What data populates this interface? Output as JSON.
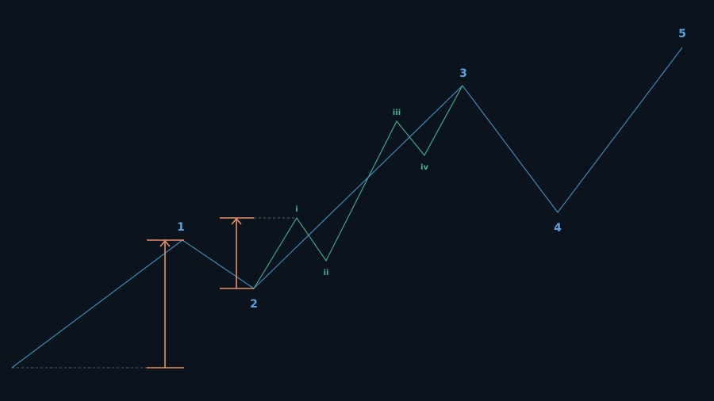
{
  "colors": {
    "background": "#0b131c",
    "main_wave": "#3f88b8",
    "sub_wave": "#3ea88f",
    "measure": "#e8906a",
    "guide": "#5a6570",
    "major_label": "#5aa3e0",
    "minor_label": "#45b39b"
  },
  "diagram": {
    "major_labels": [
      "1",
      "2",
      "3",
      "4",
      "5"
    ],
    "minor_labels": [
      "i",
      "ii",
      "iii",
      "iv"
    ]
  }
}
